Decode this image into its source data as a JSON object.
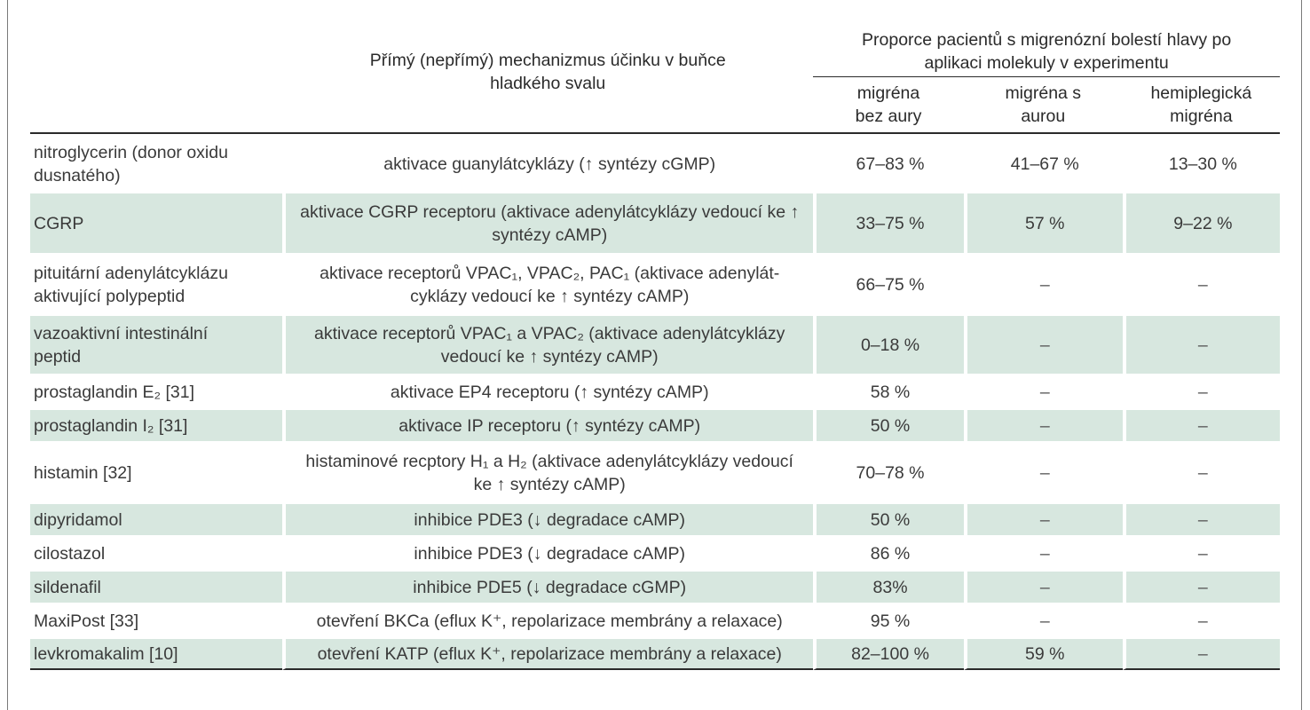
{
  "header": {
    "mechanism": "Přímý (nepřímý) mechanizmus účinku v buňce hladkého svalu",
    "proportion_group": "Proporce pacientů s migrenózní bolestí hlavy po aplikaci molekuly v experimentu",
    "columns": [
      "migréna bez aury",
      "migréna s aurou",
      "hemiplegická migréna"
    ]
  },
  "rows": [
    {
      "substance": "nitroglycerin (donor oxidu dusnatého)",
      "mechanism": "aktivace guanylátcyklázy (↑ syntézy cGMP)",
      "without_aura": "67–83 %",
      "with_aura": "41–67 %",
      "hemiplegic": "13–30 %",
      "shaded": false
    },
    {
      "substance": "CGRP",
      "mechanism": "aktivace CGRP receptoru (aktivace adenylátcyklázy vedoucí ke ↑ syntézy cAMP)",
      "without_aura": "33–75 %",
      "with_aura": "57 %",
      "hemiplegic": "9–22 %",
      "shaded": true
    },
    {
      "substance": "pituitární adenylátcyklázu aktivující polypeptid",
      "mechanism": "aktivace receptorů VPAC₁, VPAC₂, PAC₁ (aktivace adenylát-cyklázy vedoucí ke ↑ syntézy cAMP)",
      "without_aura": "66–75 %",
      "with_aura": "–",
      "hemiplegic": "–",
      "shaded": false
    },
    {
      "substance": "vazoaktivní intestinální peptid",
      "mechanism": "aktivace receptorů VPAC₁ a VPAC₂ (aktivace adenylátcyklázy vedoucí ke ↑ syntézy cAMP)",
      "without_aura": "0–18 %",
      "with_aura": "–",
      "hemiplegic": "–",
      "shaded": true
    },
    {
      "substance": "prostaglandin E₂ [31]",
      "mechanism": "aktivace EP4 receptoru (↑ syntézy cAMP)",
      "without_aura": "58 %",
      "with_aura": "–",
      "hemiplegic": "–",
      "shaded": false
    },
    {
      "substance": "prostaglandin I₂ [31]",
      "mechanism": "aktivace IP receptoru (↑ syntézy cAMP)",
      "without_aura": "50 %",
      "with_aura": "–",
      "hemiplegic": "–",
      "shaded": true
    },
    {
      "substance": "histamin [32]",
      "mechanism": "histaminové recptory H₁ a H₂ (aktivace adenylátcyklázy vedoucí ke ↑ syntézy cAMP)",
      "without_aura": "70–78 %",
      "with_aura": "–",
      "hemiplegic": "–",
      "shaded": false
    },
    {
      "substance": "dipyridamol",
      "mechanism": "inhibice PDE3 (↓ degradace cAMP)",
      "without_aura": "50 %",
      "with_aura": "–",
      "hemiplegic": "–",
      "shaded": true
    },
    {
      "substance": "cilostazol",
      "mechanism": "inhibice PDE3 (↓ degradace cAMP)",
      "without_aura": "86 %",
      "with_aura": "–",
      "hemiplegic": "–",
      "shaded": false
    },
    {
      "substance": "sildenafil",
      "mechanism": "inhibice PDE5 (↓ degradace cGMP)",
      "without_aura": "83%",
      "with_aura": "–",
      "hemiplegic": "–",
      "shaded": true
    },
    {
      "substance": "MaxiPost [33]",
      "mechanism": "otevření BKCa (eflux K⁺, repolarizace membrány a relaxace)",
      "without_aura": "95 %",
      "with_aura": "–",
      "hemiplegic": "–",
      "shaded": false
    },
    {
      "substance": "levkromakalim [10]",
      "mechanism": "otevření KATP (eflux K⁺, repolarizace membrány a relaxace)",
      "without_aura": "82–100 %",
      "with_aura": "59 %",
      "hemiplegic": "–",
      "shaded": true
    }
  ]
}
